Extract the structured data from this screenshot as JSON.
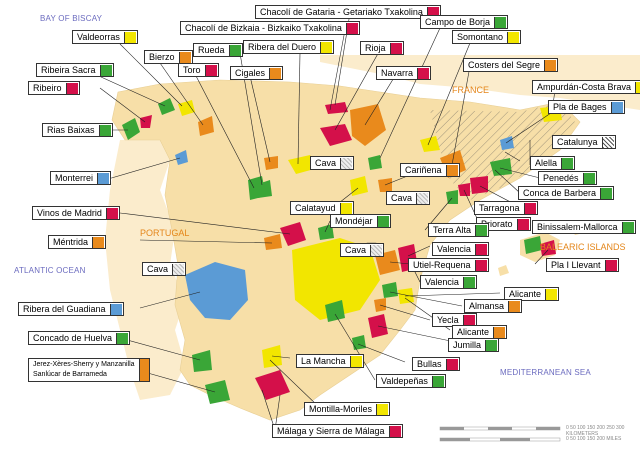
{
  "colors": {
    "red": "#d4104a",
    "green": "#3aa637",
    "yellow": "#f2e600",
    "orange": "#e98a1c",
    "blue": "#5b9bd5",
    "cava": "#d8d8d8",
    "catalunya": "#ffffff",
    "land": "#f7dfa8",
    "sea": "#ffffff"
  },
  "seas": {
    "biscay": "BAY OF BISCAY",
    "atlantic": "ATLANTIC OCEAN",
    "med": "MEDITERRANEAN SEA"
  },
  "countries": {
    "france": "FRANCE",
    "portugal": "PORTUGAL",
    "balearic": "BALEARIC ISLANDS"
  },
  "scale": {
    "km": "0    50   100  150  200  250  300 KILOMETERS",
    "mi": "0    50   100  150  200 MILES"
  },
  "labels": [
    {
      "id": "chacoli-gataria",
      "text": "Chacolí de Gataria - Getariako Txakolina",
      "color": "red"
    },
    {
      "id": "chacoli-bizkaia",
      "text": "Chacolí de Bizkaia - Bizkaiko Txakolina",
      "color": "red"
    },
    {
      "id": "campo-de-borja",
      "text": "Campo de Borja",
      "color": "green"
    },
    {
      "id": "valdeorras",
      "text": "Valdeorras",
      "color": "yellow"
    },
    {
      "id": "bierzo",
      "text": "Bierzo",
      "color": "orange"
    },
    {
      "id": "rueda",
      "text": "Rueda",
      "color": "green"
    },
    {
      "id": "ribera-del-duero",
      "text": "Ribera del Duero",
      "color": "yellow"
    },
    {
      "id": "rioja",
      "text": "Rioja",
      "color": "red"
    },
    {
      "id": "somontano",
      "text": "Somontano",
      "color": "yellow"
    },
    {
      "id": "ribeira-sacra",
      "text": "Ribeira Sacra",
      "color": "green"
    },
    {
      "id": "toro",
      "text": "Toro",
      "color": "red"
    },
    {
      "id": "cigales",
      "text": "Cigales",
      "color": "orange"
    },
    {
      "id": "navarra",
      "text": "Navarra",
      "color": "red"
    },
    {
      "id": "costers-del-segre",
      "text": "Costers del Segre",
      "color": "orange"
    },
    {
      "id": "ribeiro",
      "text": "Ribeiro",
      "color": "red"
    },
    {
      "id": "ampurdan",
      "text": "Ampurdán-Costa Brava",
      "color": "yellow"
    },
    {
      "id": "pla-de-bages",
      "text": "Pla de Bages",
      "color": "blue"
    },
    {
      "id": "rias-baixas",
      "text": "Rias Baixas",
      "color": "green"
    },
    {
      "id": "catalunya",
      "text": "Catalunya",
      "color": "catalunya"
    },
    {
      "id": "cava-1",
      "text": "Cava",
      "color": "cava"
    },
    {
      "id": "carinena",
      "text": "Cariñena",
      "color": "orange"
    },
    {
      "id": "alella",
      "text": "Alella",
      "color": "green"
    },
    {
      "id": "monterrei",
      "text": "Monterrei",
      "color": "blue"
    },
    {
      "id": "cava-2",
      "text": "Cava",
      "color": "cava"
    },
    {
      "id": "penedes",
      "text": "Penedés",
      "color": "green"
    },
    {
      "id": "conca-de-barbera",
      "text": "Conca de Barbera",
      "color": "green"
    },
    {
      "id": "calatayud",
      "text": "Calatayud",
      "color": "yellow"
    },
    {
      "id": "tarragona",
      "text": "Tarragona",
      "color": "red"
    },
    {
      "id": "vinos-de-madrid",
      "text": "Vinos de Madrid",
      "color": "red"
    },
    {
      "id": "priorato",
      "text": "Priorato",
      "color": "red"
    },
    {
      "id": "mondejar",
      "text": "Mondéjar",
      "color": "green"
    },
    {
      "id": "binissalem",
      "text": "Binissalem-Mallorca",
      "color": "green"
    },
    {
      "id": "terra-alta",
      "text": "Terra Alta",
      "color": "green"
    },
    {
      "id": "mentrida",
      "text": "Méntrida",
      "color": "orange"
    },
    {
      "id": "cava-3",
      "text": "Cava",
      "color": "cava"
    },
    {
      "id": "valencia-1",
      "text": "Valencia",
      "color": "red"
    },
    {
      "id": "pla-i-llevant",
      "text": "Pla I Llevant",
      "color": "red"
    },
    {
      "id": "utiel-requena",
      "text": "Utiel-Requena",
      "color": "red"
    },
    {
      "id": "cava-4",
      "text": "Cava",
      "color": "cava"
    },
    {
      "id": "valencia-2",
      "text": "Valencia",
      "color": "green"
    },
    {
      "id": "alicante-1",
      "text": "Alicante",
      "color": "yellow"
    },
    {
      "id": "ribera-del-guadiana",
      "text": "Ribera del Guadiana",
      "color": "blue"
    },
    {
      "id": "almansa",
      "text": "Almansa",
      "color": "orange"
    },
    {
      "id": "yecla",
      "text": "Yecla",
      "color": "red"
    },
    {
      "id": "alicante-2",
      "text": "Alicante",
      "color": "orange"
    },
    {
      "id": "concado-de-huelva",
      "text": "Concado de Huelva",
      "color": "green"
    },
    {
      "id": "jumilla",
      "text": "Jumilla",
      "color": "green"
    },
    {
      "id": "jerez",
      "text": "Jerez-Xères-Sherry y Manzanilla\nSanlúcar de Barrameda",
      "color": "orange"
    },
    {
      "id": "la-mancha",
      "text": "La Mancha",
      "color": "yellow"
    },
    {
      "id": "bullas",
      "text": "Bullas",
      "color": "red"
    },
    {
      "id": "valdepenas",
      "text": "Valdepeñas",
      "color": "green"
    },
    {
      "id": "montilla",
      "text": "Montilla-Moriles",
      "color": "yellow"
    },
    {
      "id": "malaga",
      "text": "Málaga y Sierra de Málaga",
      "color": "red"
    }
  ]
}
